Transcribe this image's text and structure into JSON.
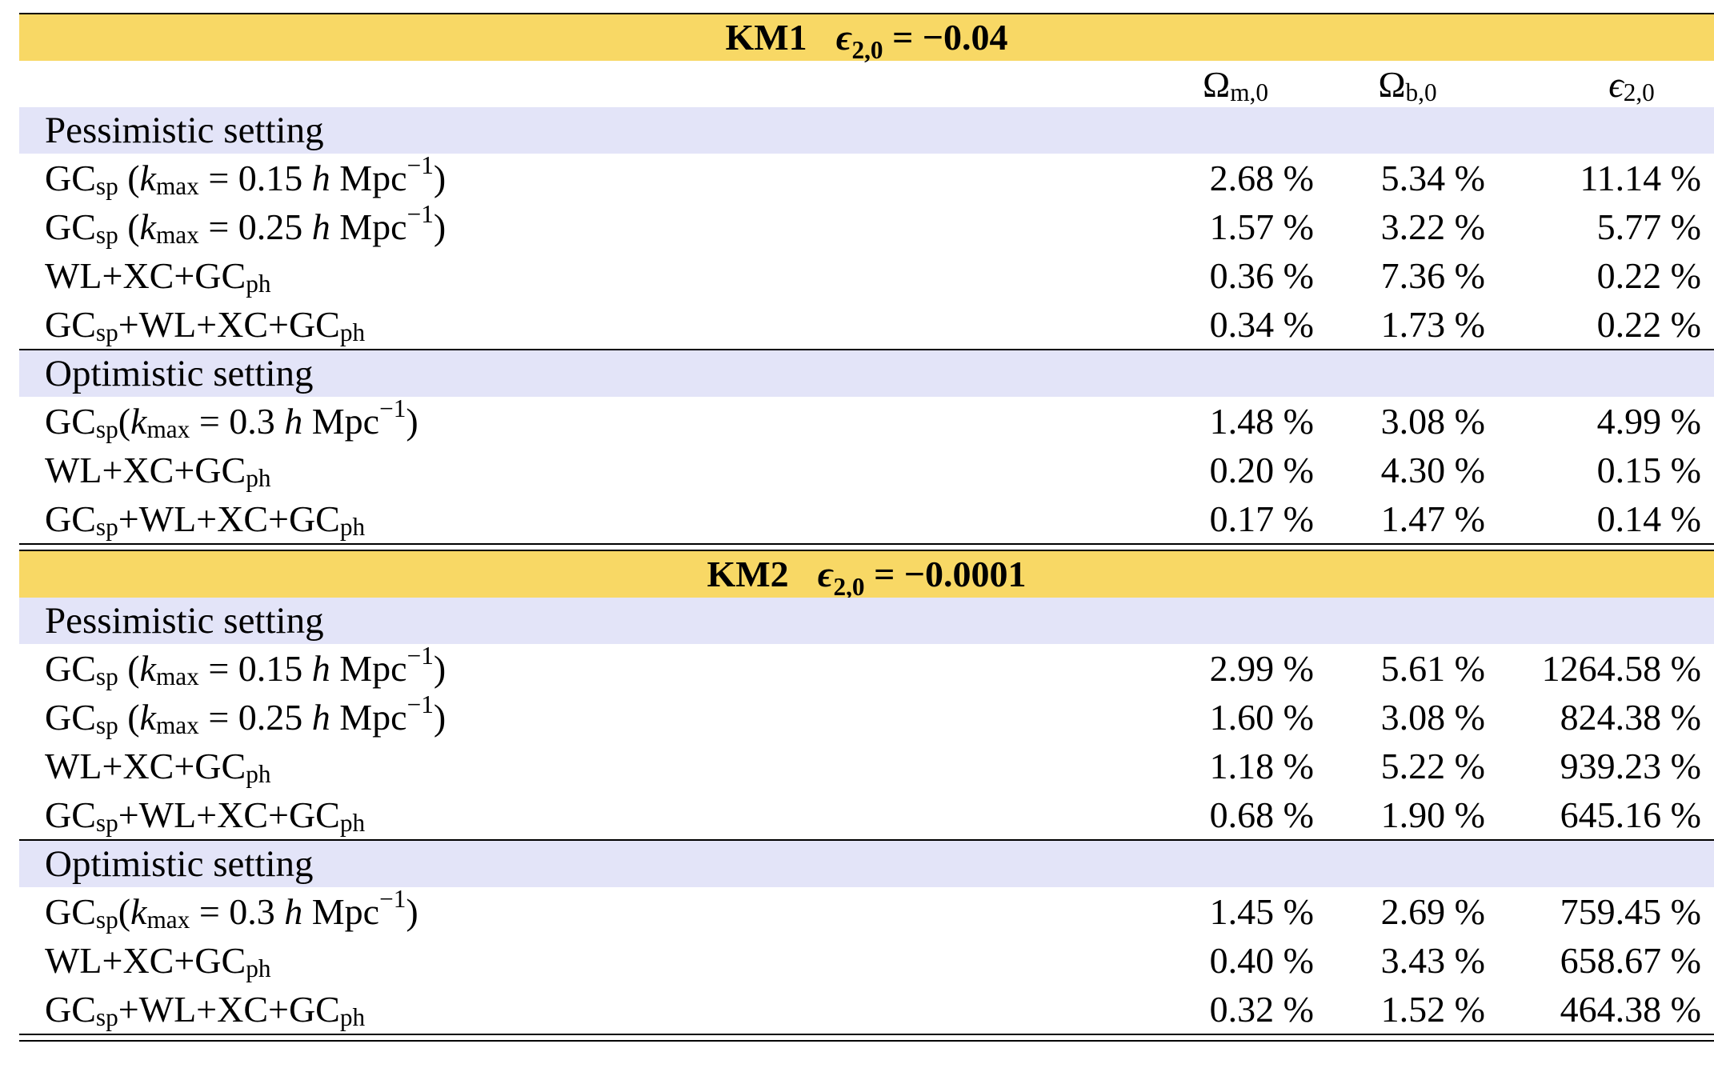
{
  "columns": [
    "Ω_m,0",
    "Ω_b,0",
    "ε_2,0"
  ],
  "tables": [
    {
      "model": "KM1",
      "param": "ϵ2,0 = −0.04",
      "param_symbol": "ϵ",
      "param_sub": "2,0",
      "param_value": "= −0.04",
      "sections": [
        {
          "label": "Pessimistic setting",
          "rows": [
            {
              "label": "GCsp (kmax = 0.15 h Mpc−1)",
              "values": [
                "2.68 %",
                "5.34 %",
                "11.14 %"
              ]
            },
            {
              "label": "GCsp (kmax = 0.25 h Mpc−1)",
              "values": [
                "1.57 %",
                "3.22 %",
                "5.77 %"
              ]
            },
            {
              "label": "WL+XC+GCph",
              "values": [
                "0.36 %",
                "7.36 %",
                "0.22 %"
              ]
            },
            {
              "label": "GCsp+WL+XC+GCph",
              "values": [
                "0.34 %",
                "1.73 %",
                "0.22 %"
              ]
            }
          ]
        },
        {
          "label": "Optimistic setting",
          "rows": [
            {
              "label": "GCsp(kmax = 0.3 h Mpc−1)",
              "values": [
                "1.48 %",
                "3.08 %",
                "4.99 %"
              ]
            },
            {
              "label": "WL+XC+GCph",
              "values": [
                "0.20 %",
                "4.30 %",
                "0.15 %"
              ]
            },
            {
              "label": "GCsp+WL+XC+GCph",
              "values": [
                "0.17 %",
                "1.47 %",
                "0.14 %"
              ]
            }
          ]
        }
      ]
    },
    {
      "model": "KM2",
      "param": "ϵ2,0 = −0.0001",
      "param_symbol": "ϵ",
      "param_sub": "2,0",
      "param_value": "= −0.0001",
      "sections": [
        {
          "label": "Pessimistic setting",
          "rows": [
            {
              "label": "GCsp (kmax = 0.15 h Mpc−1)",
              "values": [
                "2.99 %",
                "5.61 %",
                "1264.58 %"
              ]
            },
            {
              "label": "GCsp (kmax = 0.25 h Mpc−1)",
              "values": [
                "1.60 %",
                "3.08 %",
                "824.38 %"
              ]
            },
            {
              "label": "WL+XC+GCph",
              "values": [
                "1.18 %",
                "5.22 %",
                "939.23 %"
              ]
            },
            {
              "label": "GCsp+WL+XC+GCph",
              "values": [
                "0.68 %",
                "1.90 %",
                "645.16 %"
              ]
            }
          ]
        },
        {
          "label": "Optimistic setting",
          "rows": [
            {
              "label": "GCsp(kmax = 0.3 h Mpc−1)",
              "values": [
                "1.45 %",
                "2.69 %",
                "759.45 %"
              ]
            },
            {
              "label": "WL+XC+GCph",
              "values": [
                "0.40 %",
                "3.43 %",
                "658.67 %"
              ]
            },
            {
              "label": "GCsp+WL+XC+GCph",
              "values": [
                "0.32 %",
                "1.52 %",
                "464.38 %"
              ]
            }
          ]
        }
      ]
    }
  ]
}
